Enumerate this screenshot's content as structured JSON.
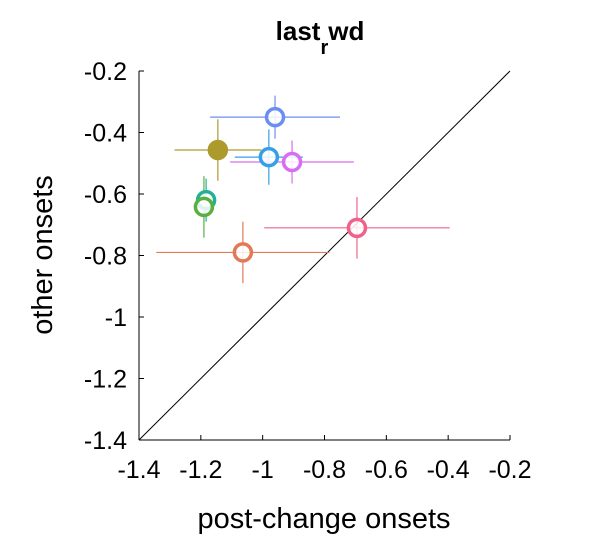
{
  "chart_data": {
    "type": "scatter",
    "title": [
      "last",
      "r",
      "wd"
    ],
    "x_label": "post-change onsets",
    "y_label": "other onsets",
    "xlim": [
      -1.4,
      -0.2
    ],
    "ylim": [
      -1.4,
      -0.2
    ],
    "xticks": [
      -1.4,
      -1.2,
      -1,
      -0.8,
      -0.6,
      -0.4,
      -0.2
    ],
    "yticks": [
      -1.4,
      -1.2,
      -1,
      -0.8,
      -0.6,
      -0.4,
      -0.2
    ],
    "diagonal": true,
    "series": [
      {
        "x": [
          -0.96,
          -1.145,
          -0.98,
          -0.905,
          -1.183,
          -1.19,
          -0.695,
          -1.064
        ],
        "values": [
          -0.35,
          -0.457,
          -0.48,
          -0.496,
          -0.62,
          -0.642,
          -0.71,
          -0.79
        ],
        "xerr": [
          0.21,
          0.14,
          0.11,
          0.2,
          0.03,
          0.03,
          0.3,
          0.28
        ],
        "yerr": [
          0.07,
          0.1,
          0.09,
          0.07,
          0.07,
          0.1,
          0.1,
          0.1
        ],
        "colors": [
          "#6c8ef2",
          "#ad9a2c",
          "#35a0e6",
          "#d56ef0",
          "#22b096",
          "#58b042",
          "#f0628a",
          "#e27b55"
        ],
        "filled": [
          false,
          true,
          false,
          false,
          false,
          false,
          false,
          false
        ]
      }
    ]
  }
}
